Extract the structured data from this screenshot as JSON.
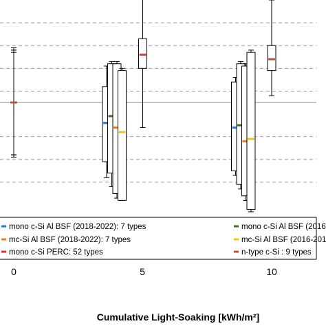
{
  "chart_data": {
    "type": "box",
    "xlabel": "Cumulative Light-Soaking [kWh/m²]",
    "ylabel": "",
    "x_ticks": [
      "0",
      "5",
      "10"
    ],
    "y_range": [
      0,
      9
    ],
    "reference_line": 4.5,
    "gridlines": [
      1,
      2,
      3,
      5,
      6,
      7,
      8
    ],
    "series": [
      {
        "name": "mono c-Si Al BSF (2018-2022): 7 types",
        "color": "#1f77d4"
      },
      {
        "name": "mono c-Si Al BSF (2016-201",
        "color": "#3e6b1f"
      },
      {
        "name": "mc-Si Al BSF (2018-2022): 7 types",
        "color": "#e87d1e"
      },
      {
        "name": "mc-Si Al BSF (2016-201",
        "color": "#f2c21b"
      },
      {
        "name": "mono c-Si PERC: 52 types",
        "color": "#e03030"
      },
      {
        "name": "n-type c-Si : 9 types",
        "color": "#c0503c"
      }
    ],
    "boxes": [
      {
        "x": 0,
        "series": 0,
        "median": 4.5,
        "q1": 4.5,
        "q3": 4.5,
        "min": 2.1,
        "max": 6.7
      },
      {
        "x": 0,
        "series": 2,
        "median": 4.5,
        "q1": 4.5,
        "q3": 4.5,
        "min": 2.2,
        "max": 6.8
      },
      {
        "x": 0,
        "series": 4,
        "median": 4.5,
        "q1": 4.5,
        "q3": 4.5,
        "min": 2.2,
        "max": 6.8
      },
      {
        "x": 0,
        "series": 5,
        "median": 4.5,
        "q1": 4.5,
        "q3": 4.5,
        "min": 2.2,
        "max": 6.9
      },
      {
        "x": 3.6,
        "series": 0,
        "median": 3.6,
        "q1": 1.9,
        "q3": 5.2,
        "min": 1.2,
        "max": 6.1
      },
      {
        "x": 3.8,
        "series": 1,
        "median": 3.9,
        "q1": 1.4,
        "q3": 6.2,
        "min": 0.8,
        "max": 6.3
      },
      {
        "x": 4.0,
        "series": 2,
        "median": 3.4,
        "q1": 0.5,
        "q3": 6.2,
        "min": 0.3,
        "max": 6.3
      },
      {
        "x": 4.2,
        "series": 3,
        "median": 3.2,
        "q1": 0.2,
        "q3": 5.9,
        "min": 0.2,
        "max": 6.0
      },
      {
        "x": 5.0,
        "series": 5,
        "median": 6.6,
        "q1": 6.0,
        "q3": 7.3,
        "min": 3.4,
        "max": 9.2
      },
      {
        "x": 8.6,
        "series": 0,
        "median": 3.4,
        "q1": 1.5,
        "q3": 5.4,
        "min": 1.3,
        "max": 5.6
      },
      {
        "x": 8.8,
        "series": 1,
        "median": 3.5,
        "q1": 0.9,
        "q3": 6.2,
        "min": 0.7,
        "max": 6.3
      },
      {
        "x": 9.0,
        "series": 2,
        "median": 2.8,
        "q1": 0.4,
        "q3": 6.1,
        "min": 0.2,
        "max": 6.2
      },
      {
        "x": 9.2,
        "series": 3,
        "median": 2.9,
        "q1": -0.2,
        "q3": 6.7,
        "min": -0.3,
        "max": 6.8
      },
      {
        "x": 10.0,
        "series": 5,
        "median": 6.4,
        "q1": 5.9,
        "q3": 7.0,
        "min": 4.8,
        "max": 9.0
      }
    ]
  }
}
